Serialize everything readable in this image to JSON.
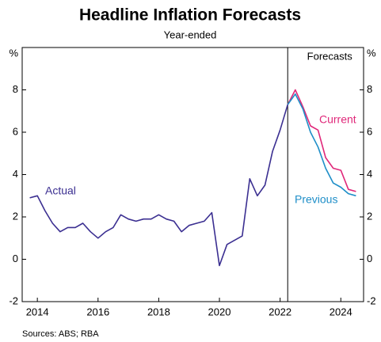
{
  "chart_data": {
    "type": "line",
    "title": "Headline Inflation Forecasts",
    "subtitle": "Year-ended",
    "source": "Sources: ABS; RBA",
    "annotation": {
      "text": "Forecasts",
      "x": 2022.75
    },
    "x": [
      2014.25,
      2014.5,
      2014.75,
      2015,
      2015.25,
      2015.5,
      2015.75,
      2016,
      2016.25,
      2016.5,
      2016.75,
      2017,
      2017.25,
      2017.5,
      2017.75,
      2018,
      2018.25,
      2018.5,
      2018.75,
      2019,
      2019.25,
      2019.5,
      2019.75,
      2020,
      2020.25,
      2020.5,
      2020.75,
      2021,
      2021.25,
      2021.5,
      2021.75,
      2022,
      2022.25,
      2022.5,
      2022.75,
      2023,
      2023.25,
      2023.5,
      2023.75,
      2024,
      2024.25,
      2024.5,
      2024.75,
      2025
    ],
    "series": [
      {
        "name": "Actual",
        "color": "#3b2f91",
        "values": [
          2.9,
          3.0,
          2.3,
          1.7,
          1.3,
          1.5,
          1.5,
          1.7,
          1.3,
          1.0,
          1.3,
          1.5,
          2.1,
          1.9,
          1.8,
          1.9,
          1.9,
          2.1,
          1.9,
          1.8,
          1.3,
          1.6,
          1.7,
          1.8,
          2.2,
          -0.3,
          0.7,
          0.9,
          1.1,
          3.8,
          3.0,
          3.5,
          5.1,
          6.1,
          7.3,
          null,
          null,
          null,
          null,
          null,
          null,
          null,
          null,
          null
        ]
      },
      {
        "name": "Current",
        "color": "#e0287a",
        "values": [
          null,
          null,
          null,
          null,
          null,
          null,
          null,
          null,
          null,
          null,
          null,
          null,
          null,
          null,
          null,
          null,
          null,
          null,
          null,
          null,
          null,
          null,
          null,
          null,
          null,
          null,
          null,
          null,
          null,
          null,
          null,
          null,
          null,
          null,
          7.3,
          8.0,
          7.2,
          6.3,
          6.1,
          4.8,
          4.3,
          4.2,
          3.3,
          3.2
        ]
      },
      {
        "name": "Previous",
        "color": "#1e8ec8",
        "values": [
          null,
          null,
          null,
          null,
          null,
          null,
          null,
          null,
          null,
          null,
          null,
          null,
          null,
          null,
          null,
          null,
          null,
          null,
          null,
          null,
          null,
          null,
          null,
          null,
          null,
          null,
          null,
          null,
          null,
          null,
          null,
          null,
          null,
          null,
          7.3,
          7.8,
          7.1,
          6.0,
          5.3,
          4.3,
          3.6,
          3.4,
          3.1,
          3.0
        ]
      }
    ],
    "xlim": [
      2014,
      2025.25
    ],
    "xticks": [
      {
        "value": 2014.5,
        "label": "2014"
      },
      {
        "value": 2016.5,
        "label": "2016"
      },
      {
        "value": 2018.5,
        "label": "2018"
      },
      {
        "value": 2020.5,
        "label": "2020"
      },
      {
        "value": 2022.5,
        "label": "2022"
      },
      {
        "value": 2024.5,
        "label": "2024"
      }
    ],
    "ylim": [
      -2,
      10
    ],
    "yticks": [
      -2,
      0,
      2,
      4,
      6,
      8,
      {
        "value": 10,
        "label": "%"
      }
    ],
    "y2lim": [
      -2,
      10
    ],
    "y2ticks": [
      -2,
      0,
      2,
      4,
      6,
      8,
      {
        "value": 10,
        "label": "%"
      }
    ],
    "grid": false
  }
}
